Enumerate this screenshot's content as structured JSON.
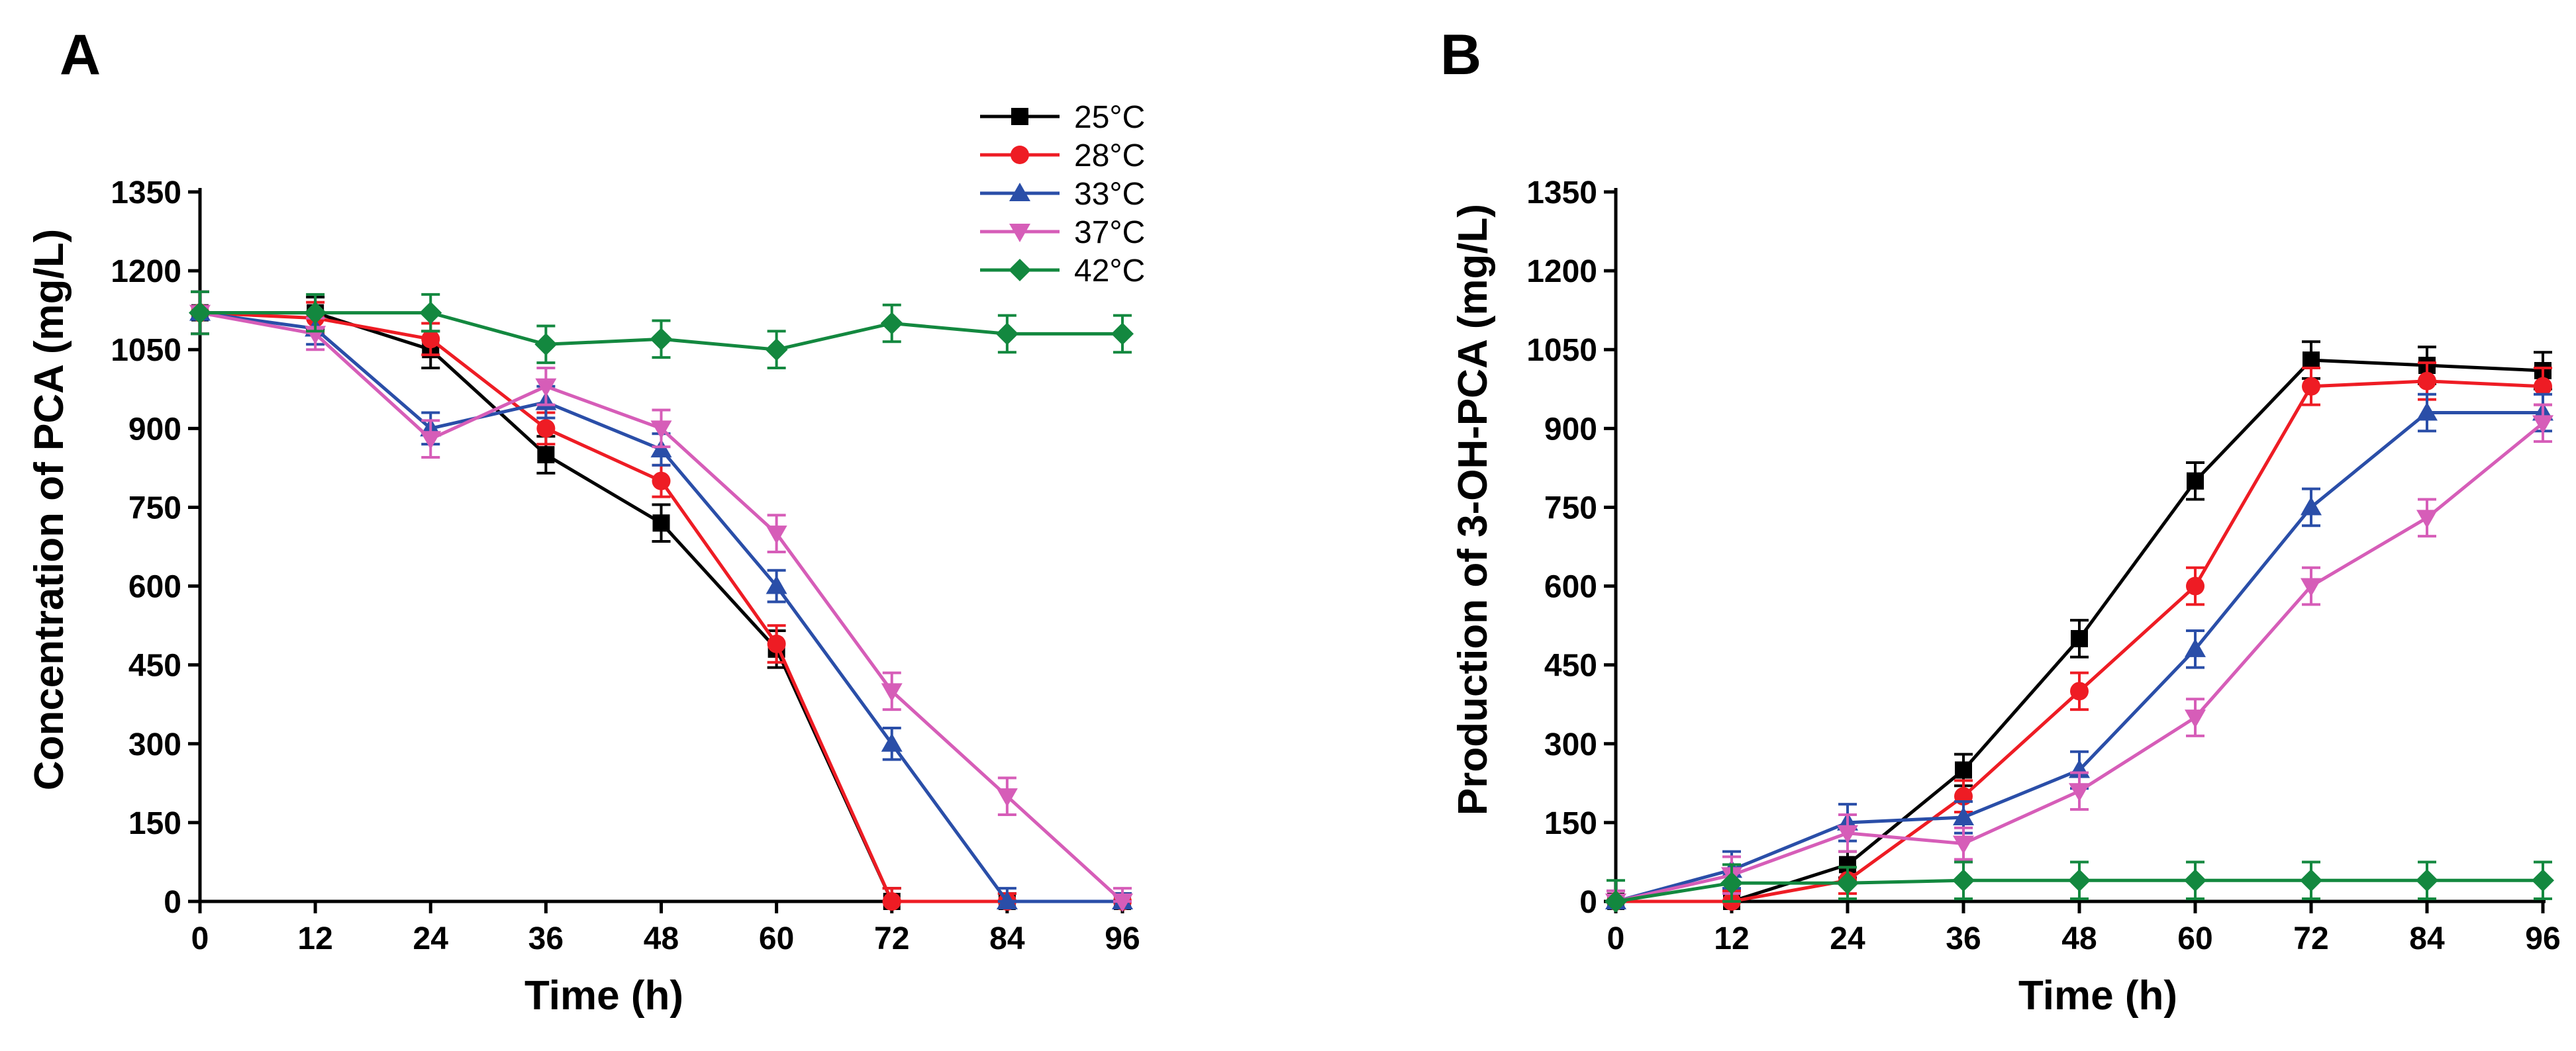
{
  "chart_data": [
    {
      "type": "line",
      "panel": "A",
      "title": "",
      "xlabel": "Time (h)",
      "ylabel": "Concentration of PCA (mg/L)",
      "xlim": [
        0,
        96
      ],
      "ylim": [
        0,
        1350
      ],
      "xticks": [
        0,
        12,
        24,
        36,
        48,
        60,
        72,
        84,
        96
      ],
      "yticks": [
        0,
        150,
        300,
        450,
        600,
        750,
        900,
        1050,
        1200,
        1350
      ],
      "legend_position": "top-right",
      "grid": false,
      "series": [
        {
          "name": "25°C",
          "color": "#000000",
          "marker": "square",
          "x": [
            0,
            12,
            24,
            36,
            48,
            60,
            72,
            84,
            96
          ],
          "y": [
            1120,
            1120,
            1050,
            850,
            720,
            480,
            0,
            0,
            0
          ],
          "err": [
            40,
            30,
            35,
            35,
            35,
            35,
            25,
            15,
            15
          ]
        },
        {
          "name": "28°C",
          "color": "#ee1c24",
          "marker": "circle",
          "x": [
            0,
            12,
            24,
            36,
            48,
            60,
            72,
            84,
            96
          ],
          "y": [
            1120,
            1110,
            1070,
            900,
            800,
            490,
            0,
            0,
            0
          ],
          "err": [
            40,
            30,
            30,
            30,
            30,
            35,
            25,
            15,
            15
          ]
        },
        {
          "name": "33°C",
          "color": "#2a4ea8",
          "marker": "triangle-up",
          "x": [
            0,
            12,
            24,
            36,
            48,
            60,
            72,
            84,
            96
          ],
          "y": [
            1120,
            1090,
            900,
            950,
            860,
            600,
            300,
            0,
            0
          ],
          "err": [
            40,
            30,
            30,
            30,
            30,
            30,
            30,
            25,
            15
          ]
        },
        {
          "name": "37°C",
          "color": "#d65db8",
          "marker": "triangle-down",
          "x": [
            0,
            12,
            24,
            36,
            48,
            60,
            72,
            84,
            96
          ],
          "y": [
            1120,
            1080,
            880,
            980,
            900,
            700,
            400,
            200,
            0
          ],
          "err": [
            40,
            30,
            35,
            35,
            35,
            35,
            35,
            35,
            25
          ]
        },
        {
          "name": "42°C",
          "color": "#13883f",
          "marker": "diamond",
          "x": [
            0,
            12,
            24,
            36,
            48,
            60,
            72,
            84,
            96
          ],
          "y": [
            1120,
            1120,
            1120,
            1060,
            1070,
            1050,
            1100,
            1080,
            1080
          ],
          "err": [
            40,
            35,
            35,
            35,
            35,
            35,
            35,
            35,
            35
          ]
        }
      ]
    },
    {
      "type": "line",
      "panel": "B",
      "title": "",
      "xlabel": "Time (h)",
      "ylabel": "Production of 3-OH-PCA (mg/L)",
      "xlim": [
        0,
        96
      ],
      "ylim": [
        0,
        1350
      ],
      "xticks": [
        0,
        12,
        24,
        36,
        48,
        60,
        72,
        84,
        96
      ],
      "yticks": [
        0,
        150,
        300,
        450,
        600,
        750,
        900,
        1050,
        1200,
        1350
      ],
      "grid": false,
      "series": [
        {
          "name": "25°C",
          "color": "#000000",
          "marker": "square",
          "x": [
            0,
            12,
            24,
            36,
            48,
            60,
            72,
            84,
            96
          ],
          "y": [
            0,
            0,
            70,
            250,
            500,
            800,
            1030,
            1020,
            1010
          ],
          "err": [
            20,
            20,
            25,
            30,
            35,
            35,
            35,
            35,
            35
          ]
        },
        {
          "name": "28°C",
          "color": "#ee1c24",
          "marker": "circle",
          "x": [
            0,
            12,
            24,
            36,
            48,
            60,
            72,
            84,
            96
          ],
          "y": [
            0,
            0,
            40,
            200,
            400,
            600,
            980,
            990,
            980
          ],
          "err": [
            20,
            20,
            25,
            30,
            35,
            35,
            35,
            35,
            35
          ]
        },
        {
          "name": "33°C",
          "color": "#2a4ea8",
          "marker": "triangle-up",
          "x": [
            0,
            12,
            24,
            36,
            48,
            60,
            72,
            84,
            96
          ],
          "y": [
            0,
            60,
            150,
            160,
            250,
            480,
            750,
            930,
            930
          ],
          "err": [
            20,
            35,
            35,
            30,
            35,
            35,
            35,
            35,
            35
          ]
        },
        {
          "name": "37°C",
          "color": "#d65db8",
          "marker": "triangle-down",
          "x": [
            0,
            12,
            24,
            36,
            48,
            60,
            72,
            84,
            96
          ],
          "y": [
            0,
            50,
            130,
            110,
            210,
            350,
            600,
            730,
            910
          ],
          "err": [
            20,
            35,
            35,
            30,
            35,
            35,
            35,
            35,
            35
          ]
        },
        {
          "name": "42°C",
          "color": "#13883f",
          "marker": "diamond",
          "x": [
            0,
            12,
            24,
            36,
            48,
            60,
            72,
            84,
            96
          ],
          "y": [
            0,
            35,
            35,
            40,
            40,
            40,
            40,
            40,
            40
          ],
          "err": [
            40,
            35,
            30,
            35,
            35,
            35,
            35,
            35,
            35
          ]
        }
      ]
    }
  ]
}
